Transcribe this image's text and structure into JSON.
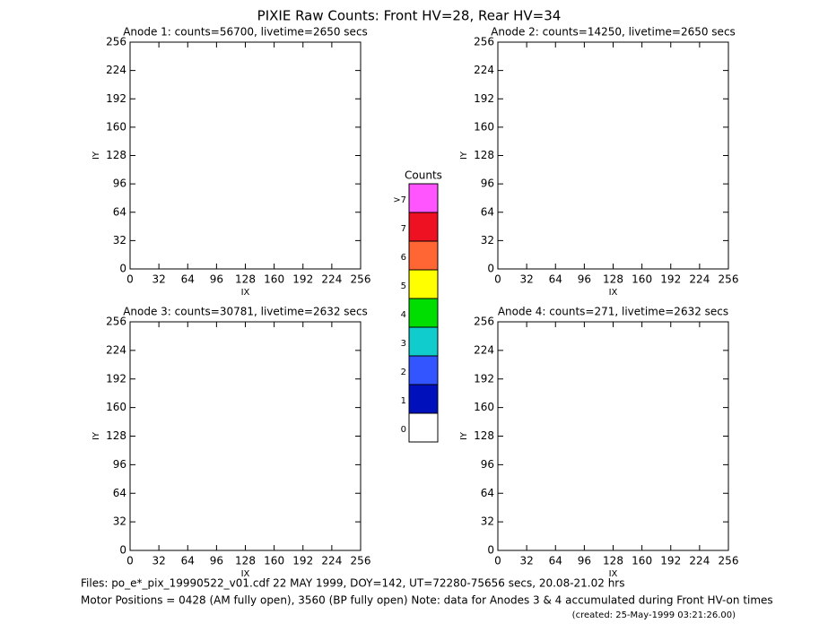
{
  "title": "PIXIE Raw Counts:  Front HV=28, Rear HV=34",
  "chart_data": [
    {
      "type": "heatmap",
      "title": "Anode 1: counts=56700, livetime=2650 secs",
      "xlabel": "IX",
      "ylabel": "IY",
      "xlim": [
        0,
        256
      ],
      "ylim": [
        0,
        256
      ],
      "xticks": [
        0,
        32,
        64,
        96,
        128,
        160,
        192,
        224,
        256
      ],
      "yticks": [
        0,
        32,
        64,
        96,
        128,
        160,
        192,
        224,
        256
      ]
    },
    {
      "type": "heatmap",
      "title": "Anode 2: counts=14250, livetime=2650 secs",
      "xlabel": "IX",
      "ylabel": "IY",
      "xlim": [
        0,
        256
      ],
      "ylim": [
        0,
        256
      ],
      "xticks": [
        0,
        32,
        64,
        96,
        128,
        160,
        192,
        224,
        256
      ],
      "yticks": [
        0,
        32,
        64,
        96,
        128,
        160,
        192,
        224,
        256
      ]
    },
    {
      "type": "heatmap",
      "title": "Anode 3: counts=30781, livetime=2632 secs",
      "xlabel": "IX",
      "ylabel": "IY",
      "xlim": [
        0,
        256
      ],
      "ylim": [
        0,
        256
      ],
      "xticks": [
        0,
        32,
        64,
        96,
        128,
        160,
        192,
        224,
        256
      ],
      "yticks": [
        0,
        32,
        64,
        96,
        128,
        160,
        192,
        224,
        256
      ]
    },
    {
      "type": "heatmap",
      "title": "Anode 4: counts=271, livetime=2632 secs",
      "xlabel": "IX",
      "ylabel": "IY",
      "xlim": [
        0,
        256
      ],
      "ylim": [
        0,
        256
      ],
      "xticks": [
        0,
        32,
        64,
        96,
        128,
        160,
        192,
        224,
        256
      ],
      "yticks": [
        0,
        32,
        64,
        96,
        128,
        160,
        192,
        224,
        256
      ]
    }
  ],
  "colorbar": {
    "title": "Counts",
    "levels": [
      "0",
      "1",
      "2",
      "3",
      "4",
      "5",
      "6",
      "7",
      ">7"
    ],
    "colors": [
      "#ffffff",
      "#0011bb",
      "#3355ff",
      "#11cccc",
      "#00dd00",
      "#ffff00",
      "#ff6633",
      "#ee1122",
      "#ff55ff"
    ]
  },
  "footer": [
    "Files: po_e*_pix_19990522_v01.cdf    22 MAY 1999, DOY=142, UT=72280-75656 secs, 20.08-21.02 hrs",
    "Motor Positions = 0428 (AM fully open), 3560 (BP fully open)    Note: data for Anodes 3 & 4 accumulated during Front HV-on times",
    "(created: 25-May-1999 03:21:26.00)"
  ]
}
